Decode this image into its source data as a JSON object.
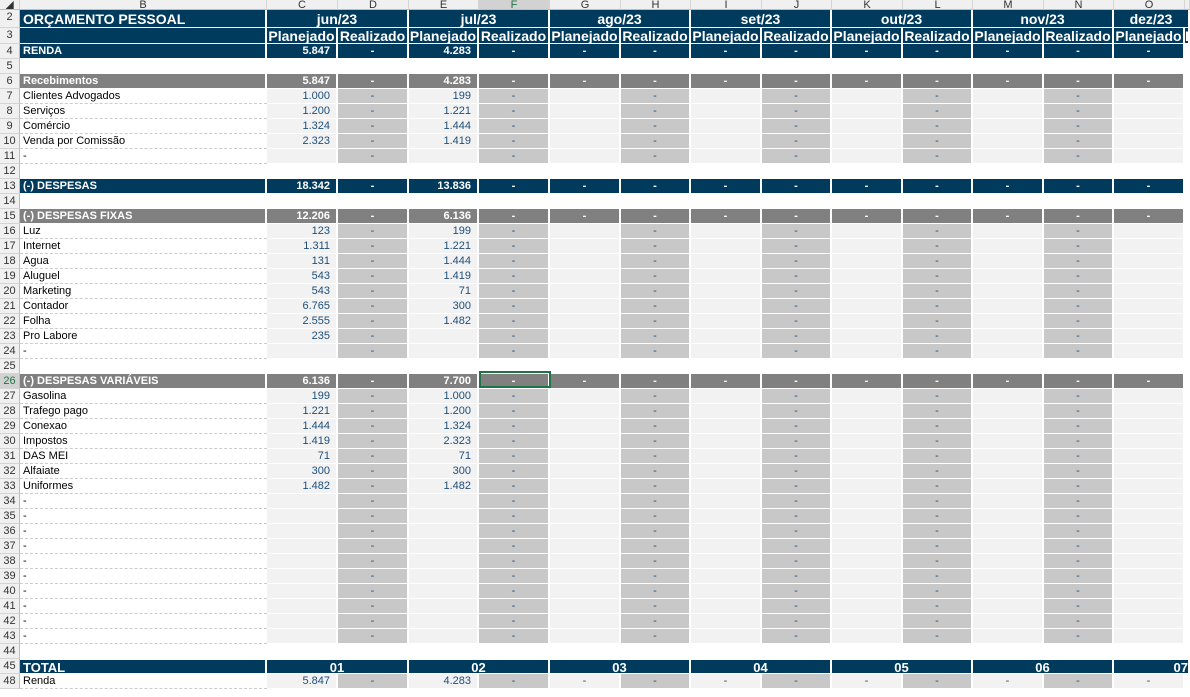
{
  "sheet": {
    "columns": [
      "B",
      "C",
      "D",
      "E",
      "F",
      "G",
      "H",
      "I",
      "J",
      "K",
      "L",
      "M",
      "N",
      "O"
    ],
    "selected_cell": "F26",
    "title": "ORÇAMENTO PESSOAL",
    "months": [
      "jun/23",
      "jul/23",
      "ago/23",
      "set/23",
      "out/23",
      "nov/23",
      "dez/23"
    ],
    "subheaders": [
      "Planejado",
      "Realizado"
    ],
    "rows": [
      {
        "n": "4",
        "type": "dark",
        "label": "RENDA",
        "v": [
          "5.847",
          "-",
          "4.283",
          "-",
          "-",
          "-",
          "-",
          "-",
          "-",
          "-",
          "-",
          "-",
          "-"
        ]
      },
      {
        "n": "5",
        "type": "blank"
      },
      {
        "n": "6",
        "type": "gray",
        "label": "Recebimentos",
        "v": [
          "5.847",
          "-",
          "4.283",
          "-",
          "-",
          "-",
          "-",
          "-",
          "-",
          "-",
          "-",
          "-",
          "-"
        ]
      },
      {
        "n": "7",
        "type": "item",
        "label": "Clientes Advogados",
        "v": [
          "1.000",
          "-",
          "199",
          "-",
          "",
          "-",
          "",
          "-",
          "",
          "-",
          "",
          "-",
          ""
        ]
      },
      {
        "n": "8",
        "type": "item",
        "label": "Serviços",
        "v": [
          "1.200",
          "-",
          "1.221",
          "-",
          "",
          "-",
          "",
          "-",
          "",
          "-",
          "",
          "-",
          ""
        ]
      },
      {
        "n": "9",
        "type": "item",
        "label": "Comércio",
        "v": [
          "1.324",
          "-",
          "1.444",
          "-",
          "",
          "-",
          "",
          "-",
          "",
          "-",
          "",
          "-",
          ""
        ]
      },
      {
        "n": "10",
        "type": "item",
        "label": "Venda por Comissão",
        "v": [
          "2.323",
          "-",
          "1.419",
          "-",
          "",
          "-",
          "",
          "-",
          "",
          "-",
          "",
          "-",
          ""
        ]
      },
      {
        "n": "11",
        "type": "item",
        "label": "-",
        "v": [
          "",
          "-",
          "",
          "-",
          "",
          "-",
          "",
          "-",
          "",
          "-",
          "",
          "-",
          ""
        ]
      },
      {
        "n": "12",
        "type": "blank"
      },
      {
        "n": "13",
        "type": "dark",
        "label": "(-) DESPESAS",
        "v": [
          "18.342",
          "-",
          "13.836",
          "-",
          "-",
          "-",
          "-",
          "-",
          "-",
          "-",
          "-",
          "-",
          "-"
        ]
      },
      {
        "n": "14",
        "type": "blank"
      },
      {
        "n": "15",
        "type": "gray",
        "label": "(-) DESPESAS FIXAS",
        "v": [
          "12.206",
          "-",
          "6.136",
          "-",
          "-",
          "-",
          "-",
          "-",
          "-",
          "-",
          "-",
          "-",
          "-"
        ]
      },
      {
        "n": "16",
        "type": "item",
        "label": "Luz",
        "v": [
          "123",
          "-",
          "199",
          "-",
          "",
          "-",
          "",
          "-",
          "",
          "-",
          "",
          "-",
          ""
        ]
      },
      {
        "n": "17",
        "type": "item",
        "label": "Internet",
        "v": [
          "1.311",
          "-",
          "1.221",
          "-",
          "",
          "-",
          "",
          "-",
          "",
          "-",
          "",
          "-",
          ""
        ]
      },
      {
        "n": "18",
        "type": "item",
        "label": "Agua",
        "v": [
          "131",
          "-",
          "1.444",
          "-",
          "",
          "-",
          "",
          "-",
          "",
          "-",
          "",
          "-",
          ""
        ]
      },
      {
        "n": "19",
        "type": "item",
        "label": "Aluguel",
        "v": [
          "543",
          "-",
          "1.419",
          "-",
          "",
          "-",
          "",
          "-",
          "",
          "-",
          "",
          "-",
          ""
        ]
      },
      {
        "n": "20",
        "type": "item",
        "label": "Marketing",
        "v": [
          "543",
          "-",
          "71",
          "-",
          "",
          "-",
          "",
          "-",
          "",
          "-",
          "",
          "-",
          ""
        ]
      },
      {
        "n": "21",
        "type": "item",
        "label": "Contador",
        "v": [
          "6.765",
          "-",
          "300",
          "-",
          "",
          "-",
          "",
          "-",
          "",
          "-",
          "",
          "-",
          ""
        ]
      },
      {
        "n": "22",
        "type": "item",
        "label": "Folha",
        "v": [
          "2.555",
          "-",
          "1.482",
          "-",
          "",
          "-",
          "",
          "-",
          "",
          "-",
          "",
          "-",
          ""
        ]
      },
      {
        "n": "23",
        "type": "item",
        "label": "Pro Labore",
        "v": [
          "235",
          "-",
          "",
          "-",
          "",
          "-",
          "",
          "-",
          "",
          "-",
          "",
          "-",
          ""
        ]
      },
      {
        "n": "24",
        "type": "item",
        "label": "-",
        "v": [
          "",
          "-",
          "",
          "-",
          "",
          "-",
          "",
          "-",
          "",
          "-",
          "",
          "-",
          ""
        ]
      },
      {
        "n": "25",
        "type": "blank"
      },
      {
        "n": "26",
        "type": "gray",
        "label": "(-) DESPESAS VARIÁVEIS",
        "v": [
          "6.136",
          "-",
          "7.700",
          "-",
          "-",
          "-",
          "-",
          "-",
          "-",
          "-",
          "-",
          "-",
          "-"
        ]
      },
      {
        "n": "27",
        "type": "item",
        "label": "Gasolina",
        "v": [
          "199",
          "-",
          "1.000",
          "-",
          "",
          "-",
          "",
          "-",
          "",
          "-",
          "",
          "-",
          ""
        ]
      },
      {
        "n": "28",
        "type": "item",
        "label": "Trafego pago",
        "v": [
          "1.221",
          "-",
          "1.200",
          "-",
          "",
          "-",
          "",
          "-",
          "",
          "-",
          "",
          "-",
          ""
        ]
      },
      {
        "n": "29",
        "type": "item",
        "label": "Conexao",
        "v": [
          "1.444",
          "-",
          "1.324",
          "-",
          "",
          "-",
          "",
          "-",
          "",
          "-",
          "",
          "-",
          ""
        ]
      },
      {
        "n": "30",
        "type": "item",
        "label": "Impostos",
        "v": [
          "1.419",
          "-",
          "2.323",
          "-",
          "",
          "-",
          "",
          "-",
          "",
          "-",
          "",
          "-",
          ""
        ]
      },
      {
        "n": "31",
        "type": "item",
        "label": "DAS MEI",
        "v": [
          "71",
          "-",
          "71",
          "-",
          "",
          "-",
          "",
          "-",
          "",
          "-",
          "",
          "-",
          ""
        ]
      },
      {
        "n": "32",
        "type": "item",
        "label": "Alfaiate",
        "v": [
          "300",
          "-",
          "300",
          "-",
          "",
          "-",
          "",
          "-",
          "",
          "-",
          "",
          "-",
          ""
        ]
      },
      {
        "n": "33",
        "type": "item",
        "label": "Uniformes",
        "v": [
          "1.482",
          "-",
          "1.482",
          "-",
          "",
          "-",
          "",
          "-",
          "",
          "-",
          "",
          "-",
          ""
        ]
      },
      {
        "n": "34",
        "type": "item",
        "label": "-",
        "v": [
          "",
          "-",
          "",
          "-",
          "",
          "-",
          "",
          "-",
          "",
          "-",
          "",
          "-",
          ""
        ]
      },
      {
        "n": "35",
        "type": "item",
        "label": "-",
        "v": [
          "",
          "-",
          "",
          "-",
          "",
          "-",
          "",
          "-",
          "",
          "-",
          "",
          "-",
          ""
        ]
      },
      {
        "n": "36",
        "type": "item",
        "label": "-",
        "v": [
          "",
          "-",
          "",
          "-",
          "",
          "-",
          "",
          "-",
          "",
          "-",
          "",
          "-",
          ""
        ]
      },
      {
        "n": "37",
        "type": "item",
        "label": "-",
        "v": [
          "",
          "-",
          "",
          "-",
          "",
          "-",
          "",
          "-",
          "",
          "-",
          "",
          "-",
          ""
        ]
      },
      {
        "n": "38",
        "type": "item",
        "label": "-",
        "v": [
          "",
          "-",
          "",
          "-",
          "",
          "-",
          "",
          "-",
          "",
          "-",
          "",
          "-",
          ""
        ]
      },
      {
        "n": "39",
        "type": "item",
        "label": "-",
        "v": [
          "",
          "-",
          "",
          "-",
          "",
          "-",
          "",
          "-",
          "",
          "-",
          "",
          "-",
          ""
        ]
      },
      {
        "n": "40",
        "type": "item",
        "label": "-",
        "v": [
          "",
          "-",
          "",
          "-",
          "",
          "-",
          "",
          "-",
          "",
          "-",
          "",
          "-",
          ""
        ]
      },
      {
        "n": "41",
        "type": "item",
        "label": "-",
        "v": [
          "",
          "-",
          "",
          "-",
          "",
          "-",
          "",
          "-",
          "",
          "-",
          "",
          "-",
          ""
        ]
      },
      {
        "n": "42",
        "type": "item",
        "label": "-",
        "v": [
          "",
          "-",
          "",
          "-",
          "",
          "-",
          "",
          "-",
          "",
          "-",
          "",
          "-",
          ""
        ]
      },
      {
        "n": "43",
        "type": "item",
        "label": "-",
        "v": [
          "",
          "-",
          "",
          "-",
          "",
          "-",
          "",
          "-",
          "",
          "-",
          "",
          "-",
          ""
        ]
      },
      {
        "n": "44",
        "type": "blank"
      },
      {
        "n": "45",
        "type": "total",
        "label": "TOTAL",
        "months": [
          "01",
          "02",
          "03",
          "04",
          "05",
          "06",
          "07"
        ]
      },
      {
        "n": "48",
        "type": "item",
        "label": "Renda",
        "v": [
          "5.847",
          "-",
          "4.283",
          "-",
          "-",
          "-",
          "-",
          "-",
          "-",
          "-",
          "-",
          "-",
          "-"
        ]
      }
    ]
  }
}
